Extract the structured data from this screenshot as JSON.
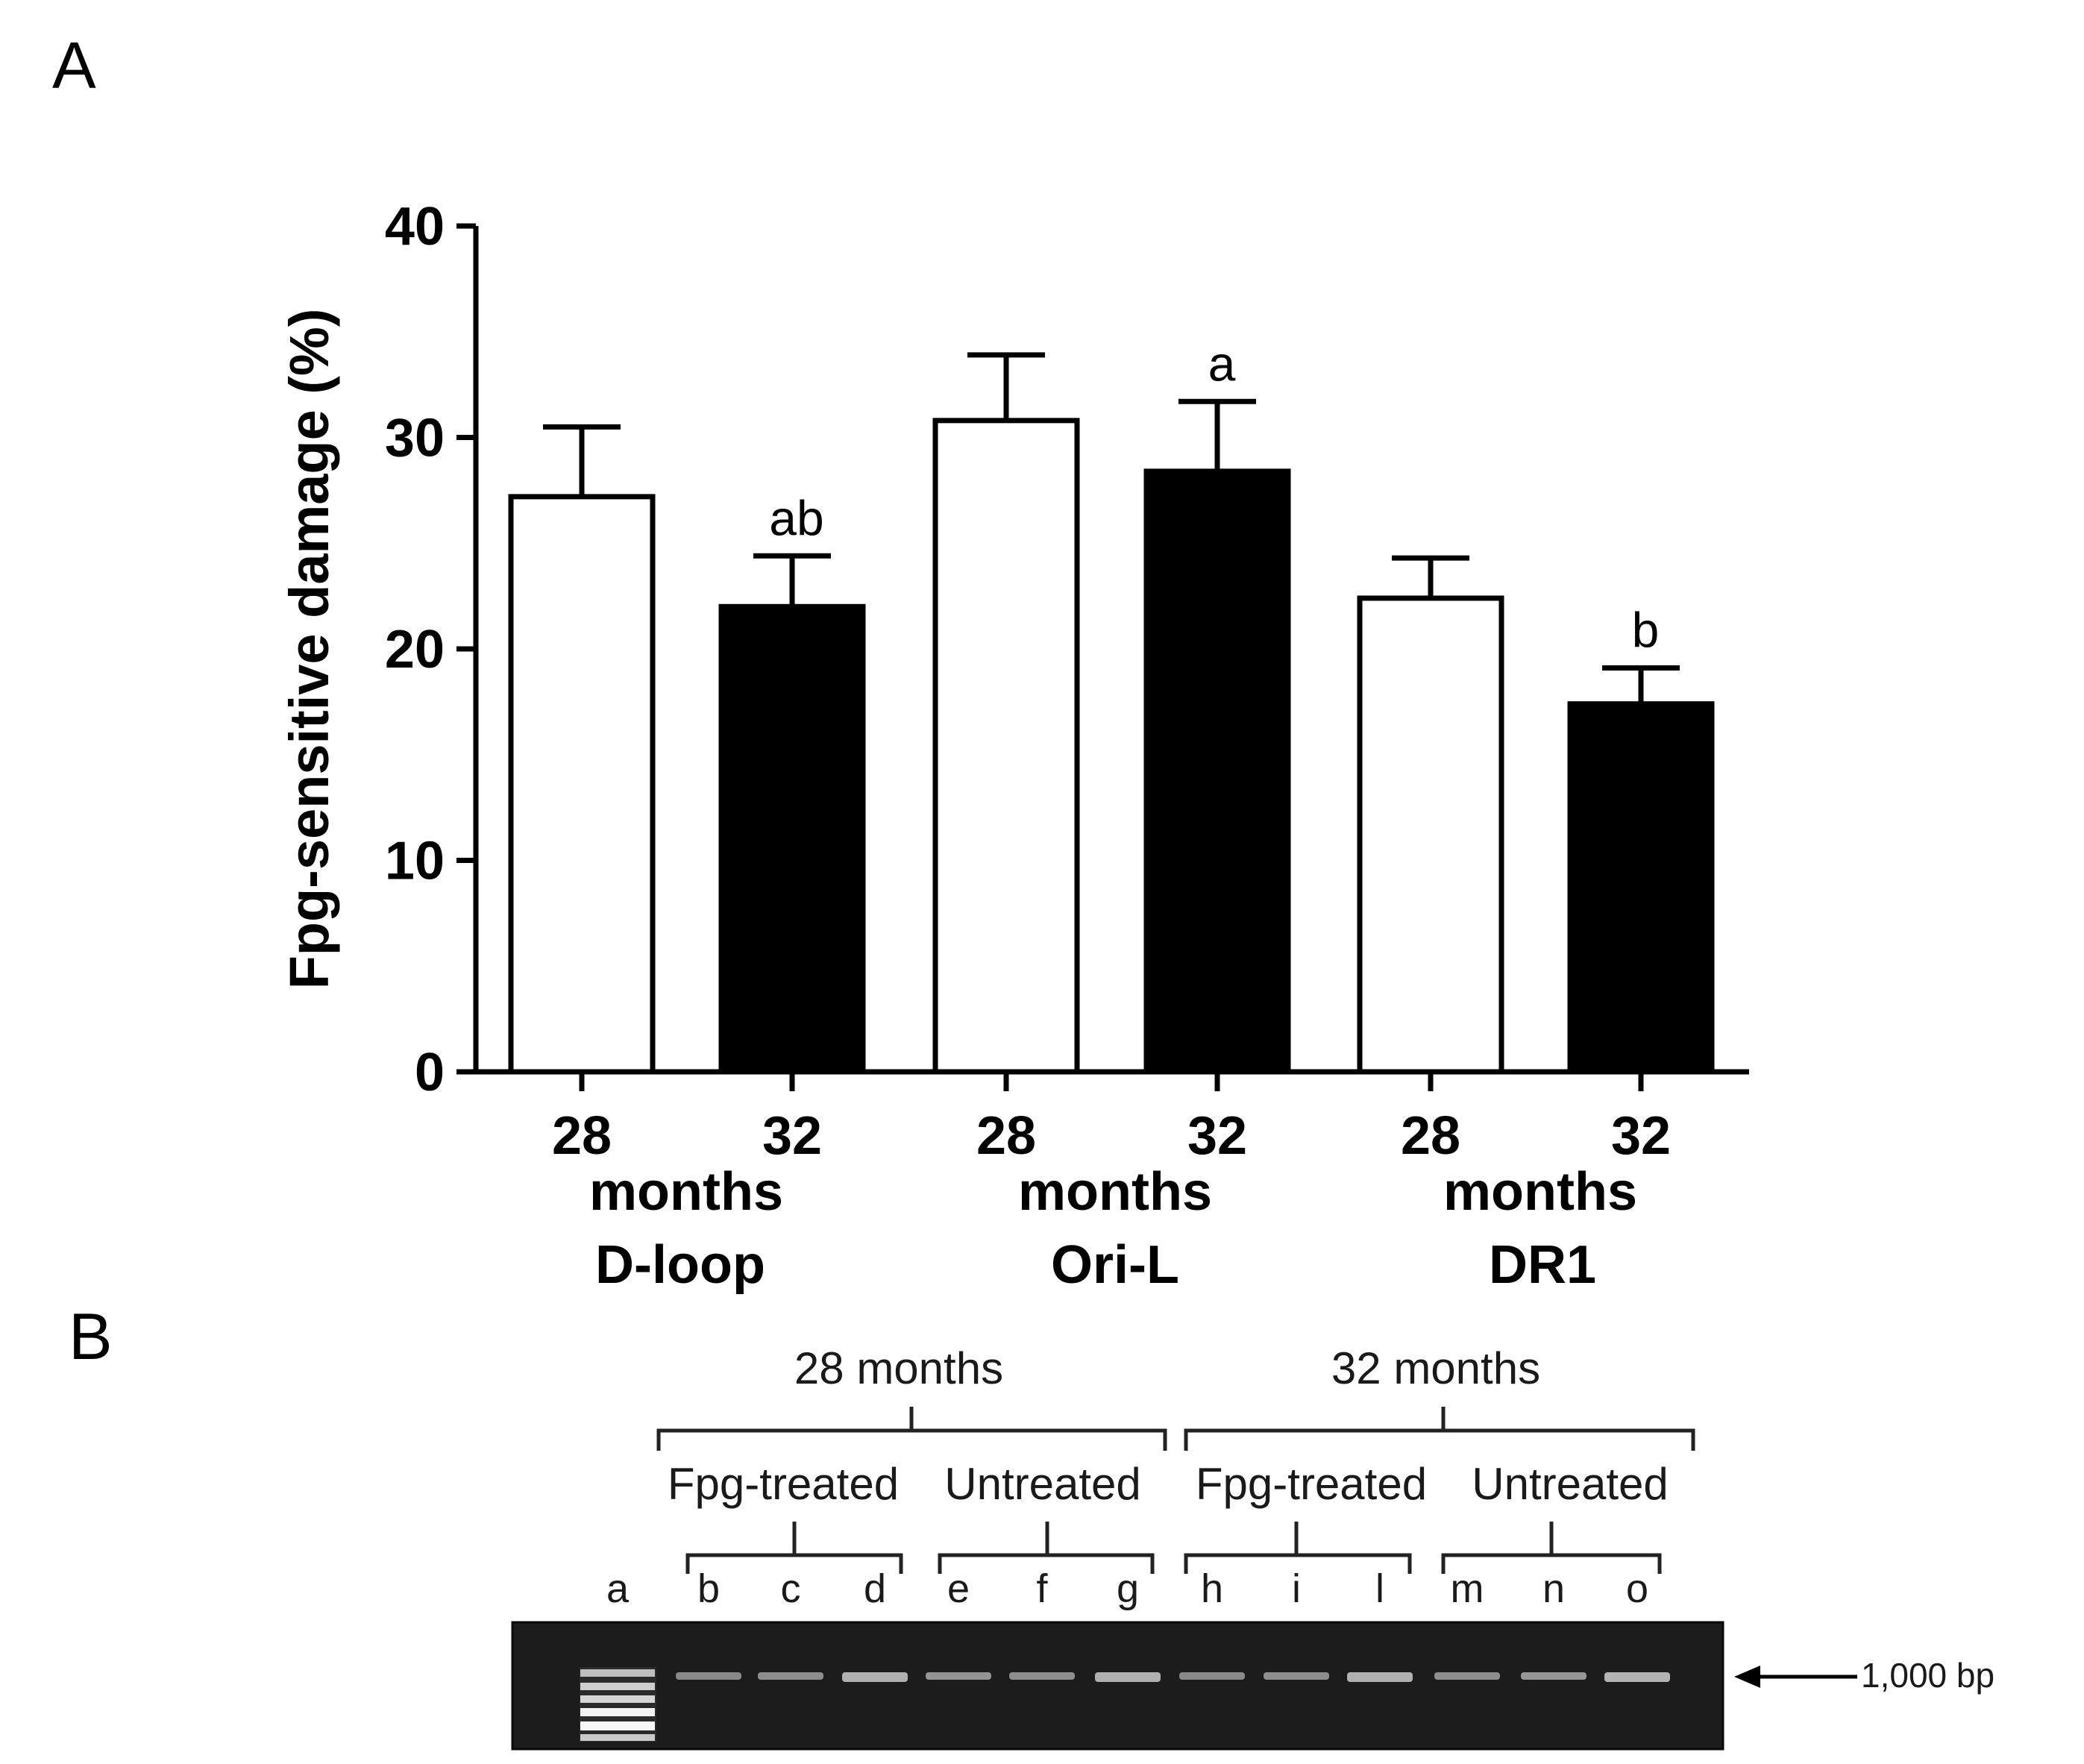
{
  "panel_a": {
    "label": "A"
  },
  "panel_b": {
    "label": "B"
  },
  "chart_data": {
    "type": "bar",
    "title": "",
    "xlabel": "",
    "ylabel": "Fpg-sensitive damage (%)",
    "ylim": [
      0,
      40
    ],
    "yticks": [
      0,
      10,
      20,
      30,
      40
    ],
    "grid": false,
    "legend": "none",
    "categories": [
      "28",
      "32",
      "28",
      "32",
      "28",
      "32"
    ],
    "unit_label": "months",
    "groups": [
      "D-loop",
      "Ori-L",
      "DR1"
    ],
    "values": [
      27.2,
      22.0,
      30.8,
      28.4,
      22.4,
      17.4
    ],
    "errors": [
      3.3,
      2.4,
      3.1,
      3.3,
      1.9,
      1.7
    ],
    "fills": [
      "#ffffff",
      "#000000",
      "#ffffff",
      "#000000",
      "#ffffff",
      "#000000"
    ],
    "annotations": [
      "",
      "ab",
      "",
      "a",
      "",
      "b"
    ]
  },
  "gel": {
    "groups": [
      "28 months",
      "32 months"
    ],
    "subgroups": [
      "Fpg-treated",
      "Untreated",
      "Fpg-treated",
      "Untreated"
    ],
    "lanes": [
      "a",
      "b",
      "c",
      "d",
      "e",
      "f",
      "g",
      "h",
      "i",
      "l",
      "m",
      "n",
      "o"
    ],
    "marker_label": "1,000 bp",
    "background_color": "#1c1c1c",
    "band_color": "#bdbdbd"
  }
}
